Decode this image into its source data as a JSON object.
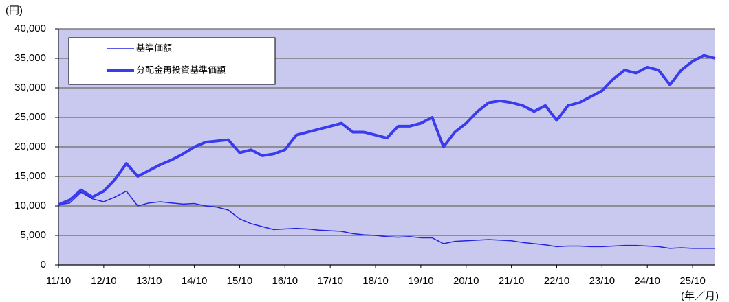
{
  "chart_data": {
    "type": "line",
    "y_unit": "(円)",
    "x_unit": "(年／月)",
    "categories": [
      "11/10",
      null,
      null,
      null,
      "12/10",
      null,
      null,
      null,
      "13/10",
      null,
      null,
      null,
      "14/10",
      null,
      null,
      null,
      "15/10",
      null,
      null,
      null,
      "16/10",
      null,
      null,
      null,
      "17/10",
      null,
      null,
      null,
      "18/10",
      null,
      null,
      null,
      "19/10",
      null,
      null,
      null,
      "20/10",
      null,
      null,
      null,
      "21/10",
      null,
      null,
      null,
      "22/10",
      null,
      null,
      null,
      "23/10",
      null,
      null,
      null,
      "24/10",
      null,
      null,
      null,
      "25/10",
      null,
      null
    ],
    "series": [
      {
        "name": "基準価額",
        "color": "#2424e0",
        "width": 1.5,
        "values": [
          10200,
          10500,
          12300,
          11200,
          10700,
          11500,
          12500,
          10000,
          10500,
          10700,
          10500,
          10300,
          10400,
          10000,
          9800,
          9300,
          7800,
          7000,
          6500,
          6000,
          6100,
          6200,
          6100,
          5900,
          5800,
          5700,
          5300,
          5100,
          5000,
          4800,
          4700,
          4800,
          4600,
          4600,
          3600,
          4000,
          4100,
          4200,
          4300,
          4200,
          4100,
          3800,
          3600,
          3400,
          3100,
          3200,
          3200,
          3100,
          3100,
          3200,
          3300,
          3300,
          3200,
          3100,
          2800,
          2900,
          2800,
          2800,
          2800
        ]
      },
      {
        "name": "分配金再投資基準価額",
        "color": "#3a3aee",
        "width": 4,
        "values": [
          10200,
          11000,
          12700,
          11500,
          12500,
          14500,
          17200,
          15000,
          16000,
          17000,
          17800,
          18800,
          20000,
          20800,
          21000,
          21200,
          19000,
          19500,
          18500,
          18800,
          19500,
          22000,
          22500,
          23000,
          23500,
          24000,
          22500,
          22500,
          22000,
          21500,
          23500,
          23500,
          24000,
          25000,
          20000,
          22500,
          24000,
          26000,
          27500,
          27800,
          27500,
          27000,
          26000,
          27000,
          24500,
          27000,
          27500,
          28500,
          29500,
          31500,
          33000,
          32500,
          33500,
          33000,
          30500,
          33000,
          34500,
          35500,
          35000
        ]
      }
    ],
    "ylim": [
      0,
      40000
    ],
    "yticks": [
      0,
      {
        "value": 5000,
        "label": "5,000"
      },
      {
        "value": 10000,
        "label": "10,000"
      },
      {
        "value": 15000,
        "label": "15,000"
      },
      {
        "value": 20000,
        "label": "20,000"
      },
      {
        "value": 25000,
        "label": "25,000"
      },
      {
        "value": 30000,
        "label": "30,000"
      },
      {
        "value": 35000,
        "label": "35,000"
      },
      {
        "value": 40000,
        "label": "40,000"
      }
    ],
    "grid": true,
    "background": "#c9c9ef",
    "legend": "upper left"
  }
}
